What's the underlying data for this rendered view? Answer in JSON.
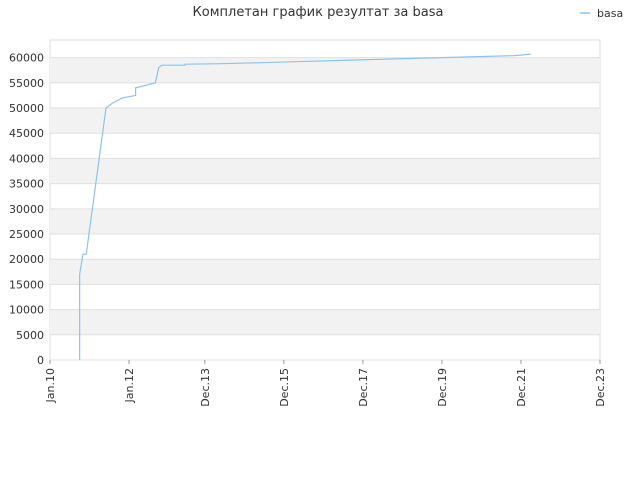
{
  "chart_data": {
    "type": "line",
    "title": "Комплетан график резултат за basa",
    "series": [
      {
        "name": "basa",
        "color": "#8cc4ee",
        "x": [
          "2010-10",
          "2010-10",
          "2010-11",
          "2010-12",
          "2011-06",
          "2011-08",
          "2011-11",
          "2012-03",
          "2012-03",
          "2012-06",
          "2012-09",
          "2012-10",
          "2012-11",
          "2013-06",
          "2013-06",
          "2014-05",
          "2015-05",
          "2016-04",
          "2017-03",
          "2018-02",
          "2019-01",
          "2019-12",
          "2020-11",
          "2021-10",
          "2022-03"
        ],
        "values": [
          0,
          17000,
          21000,
          21000,
          50000,
          51000,
          52000,
          52500,
          54000,
          54500,
          55000,
          58000,
          58500,
          58500,
          58700,
          58800,
          59000,
          59200,
          59400,
          59600,
          59800,
          60000,
          60200,
          60400,
          60700
        ]
      }
    ],
    "ylim": [
      0,
      63500
    ],
    "yticks": [
      0,
      5000,
      10000,
      15000,
      20000,
      25000,
      30000,
      35000,
      40000,
      45000,
      50000,
      55000,
      60000
    ],
    "xlim": [
      "2010-01",
      "2023-12"
    ],
    "xticks": [
      {
        "value": "2010-01",
        "label": "Jan.10"
      },
      {
        "value": "2012-01",
        "label": "Jan.12"
      },
      {
        "value": "2013-12",
        "label": "Dec.13"
      },
      {
        "value": "2015-12",
        "label": "Dec.15"
      },
      {
        "value": "2017-12",
        "label": "Dec.17"
      },
      {
        "value": "2019-12",
        "label": "Dec.19"
      },
      {
        "value": "2021-12",
        "label": "Dec.21"
      },
      {
        "value": "2023-12",
        "label": "Dec.23"
      }
    ],
    "grid": true,
    "legend": "top-right"
  }
}
